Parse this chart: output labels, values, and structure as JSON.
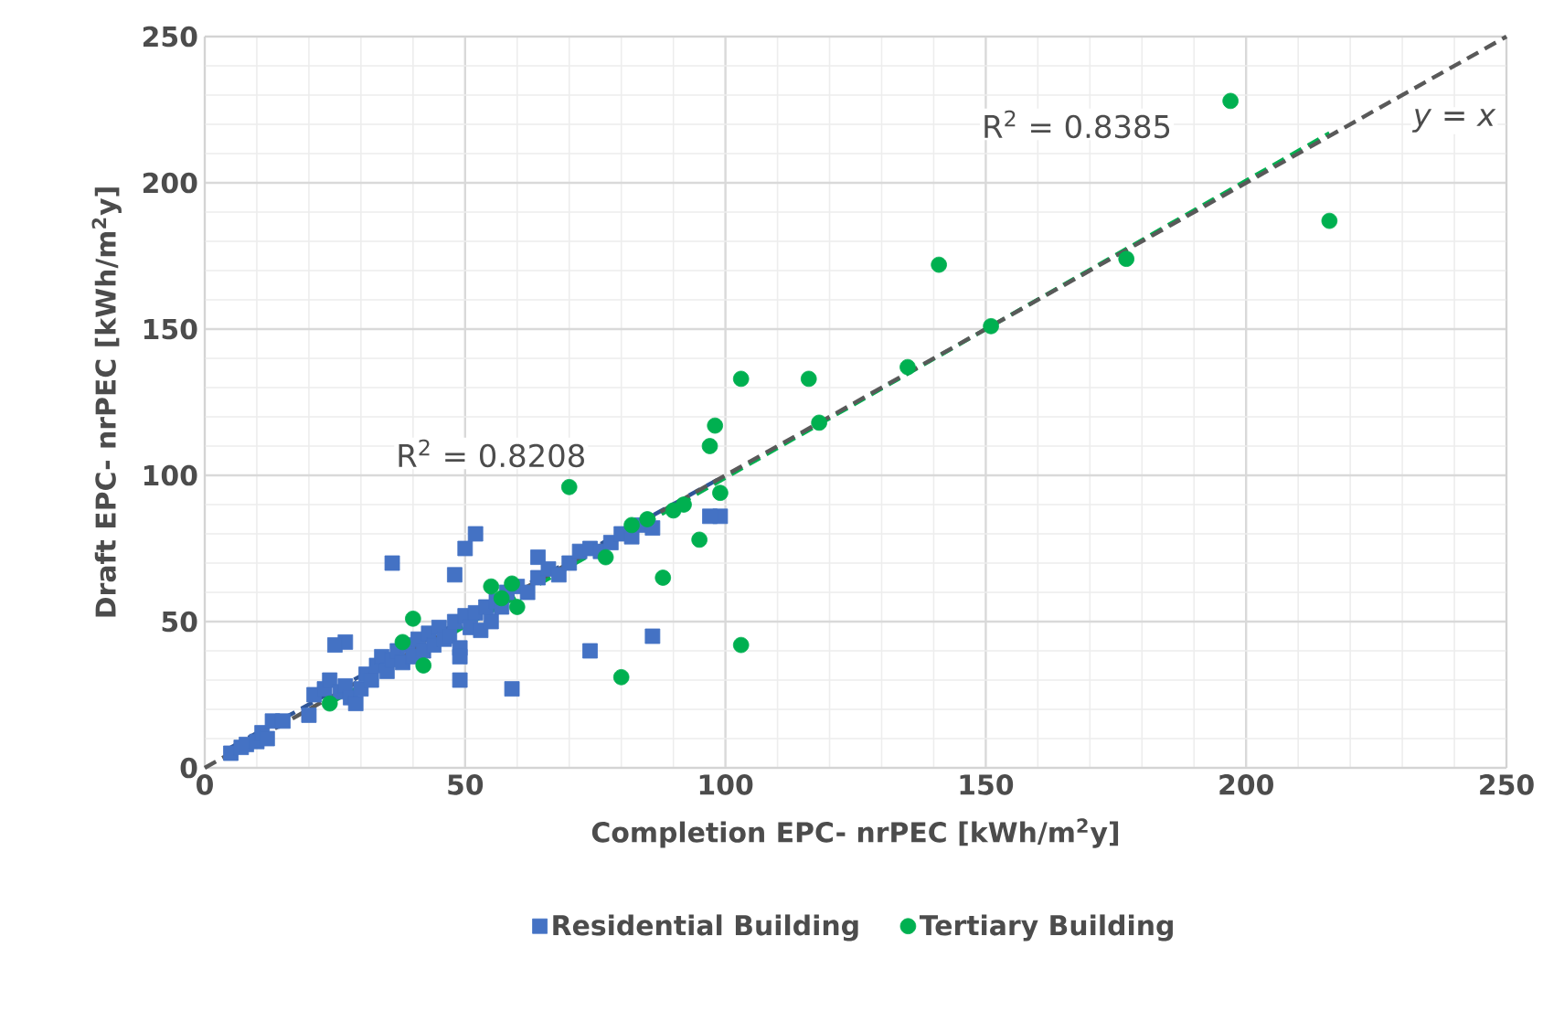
{
  "chart_data": {
    "type": "scatter",
    "xlabel": "Completion EPC- nrPEC [kWh/m$^{2}$y]",
    "ylabel": "Draft EPC- nrPEC [kWh/m$^{2}$y]",
    "xlim": [
      0,
      250
    ],
    "ylim": [
      0,
      250
    ],
    "xticks": [
      0,
      50,
      100,
      150,
      200,
      250
    ],
    "yticks": [
      0,
      50,
      100,
      150,
      200,
      250
    ],
    "grid": true,
    "legend": "bottom",
    "annotations": [
      "R$^{2}$ = 0.8208",
      "R$^{2}$ = 0.8385",
      "*y* = *x*"
    ],
    "series": [
      {
        "name": "Residential Building",
        "color": "#4472c4",
        "marker": "square",
        "x": [
          5,
          7,
          8,
          10,
          11,
          12,
          13,
          15,
          20,
          21,
          23,
          24,
          26,
          27,
          28,
          29,
          30,
          31,
          32,
          33,
          34,
          35,
          36,
          37,
          38,
          39,
          40,
          41,
          42,
          43,
          44,
          45,
          46,
          47,
          48,
          49,
          49,
          50,
          51,
          52,
          53,
          54,
          55,
          56,
          57,
          58,
          60,
          62,
          64,
          64,
          66,
          68,
          70,
          72,
          74,
          76,
          78,
          80,
          82,
          84,
          86,
          36,
          50,
          52,
          48,
          59,
          49,
          74,
          86,
          27,
          25,
          99,
          97
        ],
        "values": [
          5,
          7,
          8,
          9,
          12,
          10,
          16,
          16,
          18,
          25,
          27,
          30,
          26,
          28,
          24,
          22,
          27,
          32,
          30,
          35,
          38,
          33,
          37,
          40,
          36,
          42,
          38,
          44,
          40,
          46,
          42,
          48,
          44,
          45,
          50,
          41,
          38,
          52,
          48,
          53,
          47,
          55,
          50,
          57,
          55,
          60,
          62,
          60,
          65,
          72,
          68,
          66,
          70,
          74,
          75,
          74,
          77,
          80,
          79,
          83,
          82,
          70,
          75,
          80,
          66,
          27,
          30,
          40,
          45,
          43,
          42,
          86,
          86
        ]
      },
      {
        "name": "Tertiary Building",
        "color": "#00b050",
        "marker": "circle",
        "x": [
          24,
          38,
          40,
          42,
          55,
          57,
          59,
          60,
          70,
          77,
          80,
          82,
          85,
          88,
          90,
          92,
          95,
          97,
          98,
          99,
          103,
          103,
          116,
          118,
          135,
          141,
          151,
          177,
          197,
          216
        ],
        "values": [
          22,
          43,
          51,
          35,
          62,
          58,
          63,
          55,
          96,
          72,
          31,
          83,
          85,
          65,
          88,
          90,
          78,
          110,
          117,
          94,
          133,
          42,
          133,
          118,
          137,
          172,
          151,
          174,
          228,
          187
        ]
      },
      {
        "type": "line",
        "color": "#2f5597",
        "line_style": "dashed",
        "x": [
          5,
          99
        ],
        "values": [
          7,
          99
        ]
      },
      {
        "type": "line",
        "color": "#00b050",
        "line_style": "dashed",
        "x": [
          24,
          216
        ],
        "values": [
          22,
          217
        ]
      },
      {
        "type": "line",
        "color": "#595959",
        "line_style": "dashed",
        "x": [
          0,
          250
        ],
        "values": [
          0,
          250
        ]
      }
    ]
  }
}
